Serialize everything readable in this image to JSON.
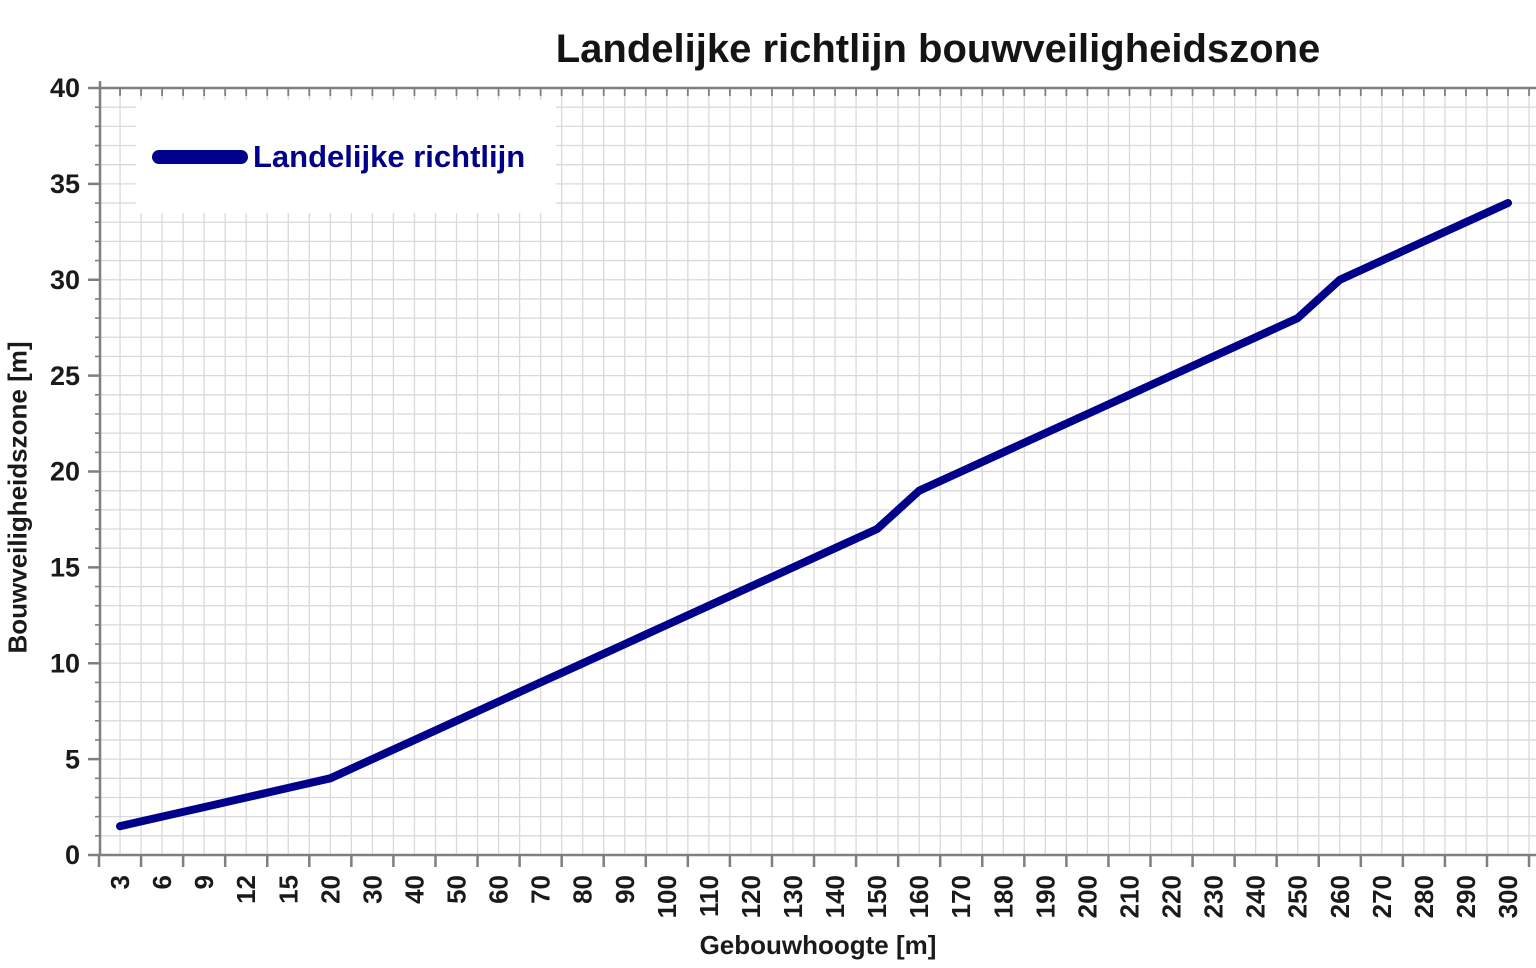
{
  "title": "Landelijke richtlijn bouwveiligheidszone",
  "legend": {
    "label": "Landelijke richtlijn"
  },
  "axes": {
    "x": {
      "title": "Gebouwhoogte [m]"
    },
    "y": {
      "title": "Bouwveiligheidszone [m]",
      "min": 0,
      "max": 40,
      "major_step": 5,
      "minor_step": 1,
      "tick_labels": [
        "0",
        "5",
        "10",
        "15",
        "20",
        "25",
        "30",
        "35",
        "40"
      ]
    }
  },
  "colors": {
    "series": "#00008B",
    "legend_text": "#00008B",
    "grid": "#d9d9d9",
    "axis": "#7f7f7f",
    "text": "#1a1a1a",
    "background": "#ffffff"
  },
  "chart_data": {
    "type": "line",
    "title": "Landelijke richtlijn bouwveiligheidszone",
    "xlabel": "Gebouwhoogte [m]",
    "ylabel": "Bouwveiligheidszone [m]",
    "x_axis_type": "categorical",
    "categories": [
      "3",
      "6",
      "9",
      "12",
      "15",
      "20",
      "30",
      "40",
      "50",
      "60",
      "70",
      "80",
      "90",
      "100",
      "110",
      "120",
      "130",
      "140",
      "150",
      "160",
      "170",
      "180",
      "190",
      "200",
      "210",
      "220",
      "230",
      "240",
      "250",
      "260",
      "270",
      "280",
      "290",
      "300"
    ],
    "series": [
      {
        "name": "Landelijke richtlijn",
        "values": [
          1.5,
          2,
          2.5,
          3,
          3.5,
          4,
          5,
          6,
          7,
          8,
          9,
          10,
          11,
          12,
          13,
          14,
          15,
          16,
          17,
          19,
          20,
          21,
          22,
          23,
          24,
          25,
          26,
          27,
          28,
          30,
          31,
          32,
          33,
          34
        ]
      }
    ],
    "ylim": [
      0,
      40
    ],
    "grid": true,
    "legend_position": "top-left"
  }
}
